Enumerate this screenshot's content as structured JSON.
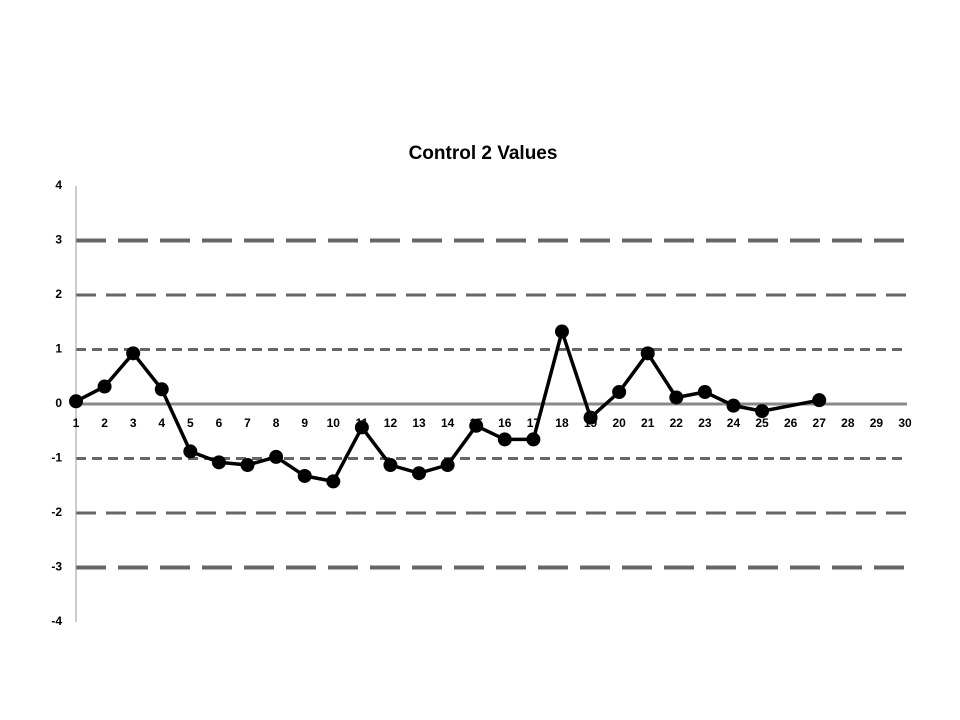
{
  "chart_data": {
    "type": "line",
    "title": "Control 2 Values",
    "x": [
      1,
      2,
      3,
      4,
      5,
      6,
      7,
      8,
      9,
      10,
      11,
      12,
      13,
      14,
      15,
      16,
      17,
      18,
      19,
      20,
      21,
      22,
      23,
      24,
      25,
      27
    ],
    "series": [
      {
        "name": "Control 2",
        "color": "#000000",
        "values": [
          0.05,
          0.32,
          0.93,
          0.27,
          -0.87,
          -1.07,
          -1.12,
          -0.97,
          -1.32,
          -1.42,
          -0.43,
          -1.12,
          -1.27,
          -1.12,
          -0.4,
          -0.65,
          -0.65,
          1.33,
          -0.25,
          0.22,
          0.93,
          0.12,
          0.22,
          -0.03,
          -0.13,
          0.07
        ]
      }
    ],
    "xlim": [
      1,
      30
    ],
    "xticks": [
      1,
      2,
      3,
      4,
      5,
      6,
      7,
      8,
      9,
      10,
      11,
      12,
      13,
      14,
      15,
      16,
      17,
      18,
      19,
      20,
      21,
      22,
      23,
      24,
      25,
      26,
      27,
      28,
      29,
      30
    ],
    "ylim": [
      -4,
      4
    ],
    "yticks": [
      -4,
      -3,
      -2,
      -1,
      0,
      1,
      2,
      3,
      4
    ],
    "reference_lines": [
      -3,
      -2,
      -1,
      1,
      2,
      3
    ],
    "reference_color": "#666666"
  }
}
